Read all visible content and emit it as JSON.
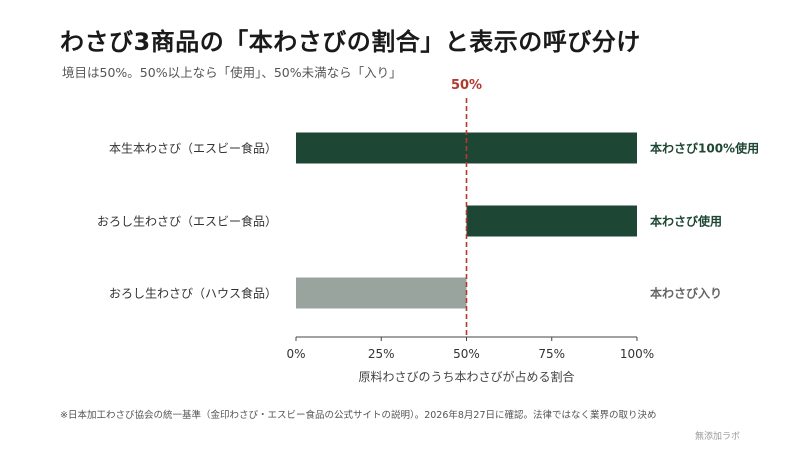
{
  "header": {
    "title": "わさび3商品の「本わさびの割合」と表示の呼び分け",
    "subtitle": "境目は50%。50%以上なら「使用」、50%未満なら「入り」"
  },
  "chart_data": {
    "type": "bar",
    "orientation": "horizontal",
    "categories": [
      "本生本わさび（エスビー食品）",
      "おろし生わさび（エスビー食品）",
      "おろし生わさび（ハウス食品）"
    ],
    "values": [
      100,
      50,
      50
    ],
    "bar_start": [
      0,
      50,
      0
    ],
    "bar_colors": [
      "#1e4634",
      "#1e4634",
      "#9aa49f"
    ],
    "annotation_colors": [
      "#1e4634",
      "#1e4634",
      "#666666"
    ],
    "annotations": [
      "本わさび100%使用",
      "本わさび使用",
      "本わさび入り"
    ],
    "xlim": [
      0,
      100
    ],
    "xticks": [
      0,
      25,
      50,
      75,
      100
    ],
    "xtick_labels": [
      "0%",
      "25%",
      "50%",
      "75%",
      "100%"
    ],
    "xlabel": "原料わさびのうち本わさびが占める割合",
    "reference_line": {
      "value": 50,
      "label": "50%",
      "color": "#b03a2e"
    },
    "grid": false,
    "legend": "none"
  },
  "footer": {
    "note": "※日本加工わさび協会の統一基準（金印わさび・エスビー食品の公式サイトの説明）。2026年8月27日に確認。法律ではなく業界の取り決め",
    "credit": "無添加ラボ"
  }
}
